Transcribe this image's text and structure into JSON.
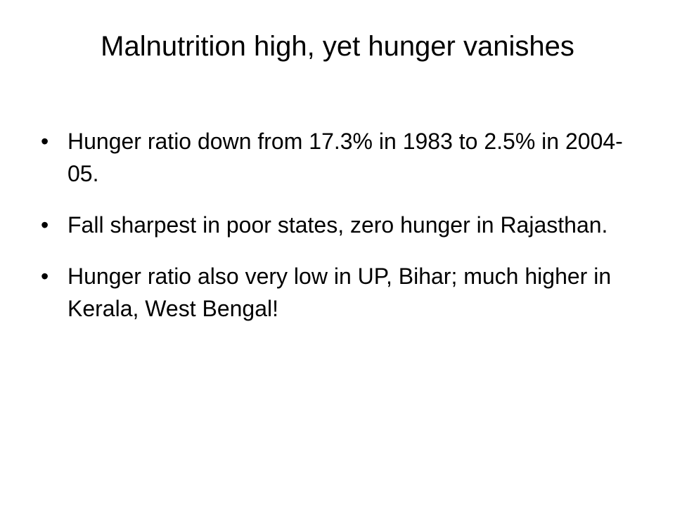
{
  "title": "Malnutrition high, yet hunger vanishes",
  "bullets": [
    "Hunger ratio down from 17.3% in 1983 to 2.5% in 2004-05.",
    "Fall sharpest in poor states, zero hunger in Rajasthan.",
    "Hunger ratio also very low in UP, Bihar; much higher in Kerala, West Bengal!"
  ]
}
